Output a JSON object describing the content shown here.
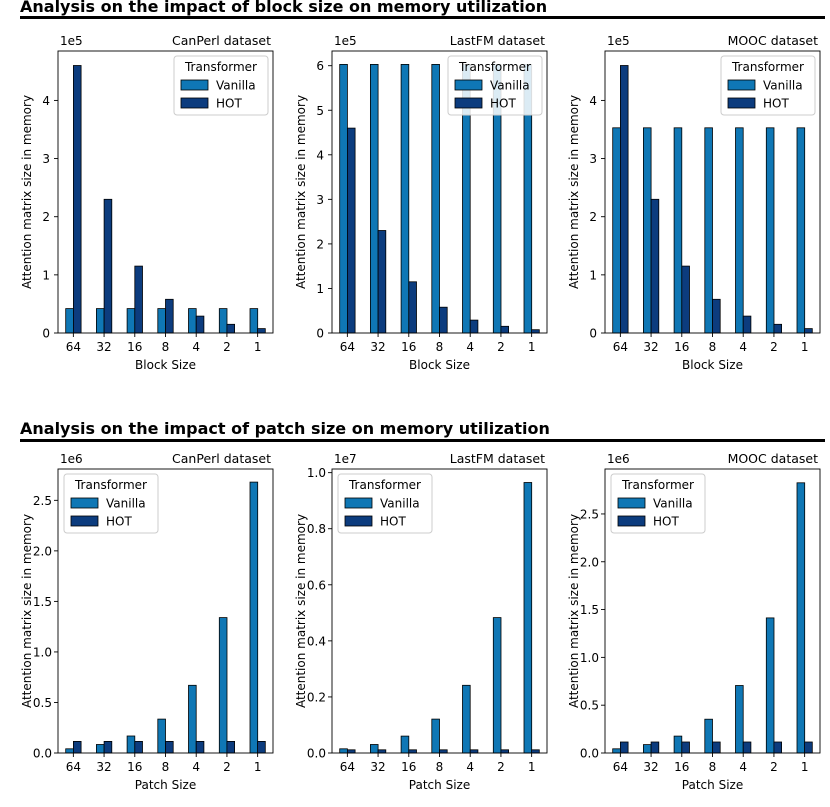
{
  "sections": [
    {
      "title": "Analysis on the impact of block size on memory utilization",
      "charts": [
        {
          "type": "bar",
          "title": "CanPerl dataset",
          "xlabel": "Block Size",
          "ylabel": "Attention matrix size in memory",
          "multiplier": "1e5",
          "scale": 100000,
          "ylim": [
            0,
            4.85
          ],
          "yticks": [
            0,
            1,
            2,
            3,
            4
          ],
          "categories": [
            "64",
            "32",
            "16",
            "8",
            "4",
            "2",
            "1"
          ],
          "series": [
            {
              "name": "Vanilla",
              "color": "#0f77b5",
              "values": [
                42000,
                42000,
                42000,
                42000,
                42000,
                42000,
                42000
              ]
            },
            {
              "name": "HOT",
              "color": "#0c3c7e",
              "values": [
                460000,
                230000,
                115000,
                58000,
                29000,
                15000,
                7500
              ]
            }
          ],
          "legend": {
            "title": "Transformer",
            "loc": "top-right"
          }
        },
        {
          "type": "bar",
          "title": "LastFM dataset",
          "xlabel": "Block Size",
          "ylabel": "Attention matrix size in memory",
          "multiplier": "1e5",
          "scale": 100000,
          "ylim": [
            0,
            6.33
          ],
          "yticks": [
            0,
            1,
            2,
            3,
            4,
            5,
            6
          ],
          "categories": [
            "64",
            "32",
            "16",
            "8",
            "4",
            "2",
            "1"
          ],
          "series": [
            {
              "name": "Vanilla",
              "color": "#0f77b5",
              "values": [
                603000,
                603000,
                603000,
                603000,
                603000,
                603000,
                603000
              ]
            },
            {
              "name": "HOT",
              "color": "#0c3c7e",
              "values": [
                460000,
                230000,
                115000,
                58000,
                29000,
                15000,
                7500
              ]
            }
          ],
          "legend": {
            "title": "Transformer",
            "loc": "top-right"
          }
        },
        {
          "type": "bar",
          "title": "MOOC dataset",
          "xlabel": "Block Size",
          "ylabel": "Attention matrix size in memory",
          "multiplier": "1e5",
          "scale": 100000,
          "ylim": [
            0,
            4.85
          ],
          "yticks": [
            0,
            1,
            2,
            3,
            4
          ],
          "categories": [
            "64",
            "32",
            "16",
            "8",
            "4",
            "2",
            "1"
          ],
          "series": [
            {
              "name": "Vanilla",
              "color": "#0f77b5",
              "values": [
                353000,
                353000,
                353000,
                353000,
                353000,
                353000,
                353000
              ]
            },
            {
              "name": "HOT",
              "color": "#0c3c7e",
              "values": [
                460000,
                230000,
                115000,
                58000,
                29000,
                15000,
                7500
              ]
            }
          ],
          "legend": {
            "title": "Transformer",
            "loc": "top-right"
          }
        }
      ]
    },
    {
      "title": "Analysis on the impact of patch size on memory utilization",
      "charts": [
        {
          "type": "bar",
          "title": "CanPerl dataset",
          "xlabel": "Patch Size",
          "ylabel": "Attention matrix size in memory",
          "multiplier": "1e6",
          "scale": 1000000,
          "ylim": [
            0,
            2.81
          ],
          "yticks": [
            "0.0",
            "0.5",
            "1.0",
            "1.5",
            "2.0",
            "2.5"
          ],
          "categories": [
            "64",
            "32",
            "16",
            "8",
            "4",
            "2",
            "1"
          ],
          "series": [
            {
              "name": "Vanilla",
              "color": "#0f77b5",
              "values": [
                42000,
                84000,
                168000,
                335000,
                670000,
                1340000,
                2680000
              ]
            },
            {
              "name": "HOT",
              "color": "#0c3c7e",
              "values": [
                115000,
                115000,
                115000,
                115000,
                115000,
                115000,
                115000
              ]
            }
          ],
          "legend": {
            "title": "Transformer",
            "loc": "top-left"
          }
        },
        {
          "type": "bar",
          "title": "LastFM dataset",
          "xlabel": "Patch Size",
          "ylabel": "Attention matrix size in memory",
          "multiplier": "1e7",
          "scale": 10000000,
          "ylim": [
            0,
            1.013
          ],
          "yticks": [
            "0.0",
            "0.2",
            "0.4",
            "0.6",
            "0.8",
            "1.0"
          ],
          "categories": [
            "64",
            "32",
            "16",
            "8",
            "4",
            "2",
            "1"
          ],
          "series": [
            {
              "name": "Vanilla",
              "color": "#0f77b5",
              "values": [
                151000,
                302000,
                604000,
                1208000,
                2415000,
                4830000,
                9650000
              ]
            },
            {
              "name": "HOT",
              "color": "#0c3c7e",
              "values": [
                115000,
                115000,
                115000,
                115000,
                115000,
                115000,
                115000
              ]
            }
          ],
          "legend": {
            "title": "Transformer",
            "loc": "top-left"
          }
        },
        {
          "type": "bar",
          "title": "MOOC dataset",
          "xlabel": "Patch Size",
          "ylabel": "Attention matrix size in memory",
          "multiplier": "1e6",
          "scale": 1000000,
          "ylim": [
            0,
            2.97
          ],
          "yticks": [
            "0.0",
            "0.5",
            "1.0",
            "1.5",
            "2.0",
            "2.5"
          ],
          "categories": [
            "64",
            "32",
            "16",
            "8",
            "4",
            "2",
            "1"
          ],
          "series": [
            {
              "name": "Vanilla",
              "color": "#0f77b5",
              "values": [
                44000,
                88000,
                177000,
                353000,
                706000,
                1413000,
                2826000
              ]
            },
            {
              "name": "HOT",
              "color": "#0c3c7e",
              "values": [
                115000,
                115000,
                115000,
                115000,
                115000,
                115000,
                115000
              ]
            }
          ],
          "legend": {
            "title": "Transformer",
            "loc": "top-left"
          }
        }
      ]
    }
  ]
}
